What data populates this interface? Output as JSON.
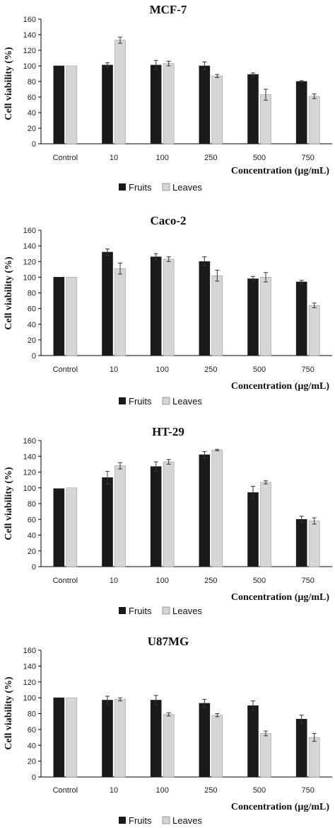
{
  "colors": {
    "fruits": "#1a1a1a",
    "leaves": "#d6d6d6",
    "axis": "#000000",
    "error": "#333333"
  },
  "chart_data": [
    {
      "type": "bar",
      "title": "MCF-7",
      "ylabel": "Cell viability (%)",
      "xlabel": "Concentration (µg/mL)",
      "categories": [
        "Control",
        "10",
        "100",
        "250",
        "500",
        "750"
      ],
      "ylim": [
        0,
        160
      ],
      "yticks": [
        0,
        20,
        40,
        60,
        80,
        100,
        120,
        140,
        160
      ],
      "grid": false,
      "legend": "bottom",
      "series": [
        {
          "name": "Fruits",
          "values": [
            100,
            101,
            101,
            100,
            89,
            80
          ],
          "errors": [
            0,
            3,
            6,
            5,
            2,
            1
          ]
        },
        {
          "name": "Leaves",
          "values": [
            100,
            133,
            103,
            87,
            63,
            61
          ],
          "errors": [
            0,
            4,
            3,
            2,
            7,
            3
          ]
        }
      ]
    },
    {
      "type": "bar",
      "title": "Caco-2",
      "ylabel": "Cell viability (%)",
      "xlabel": "Concentration (µg/mL)",
      "categories": [
        "Control",
        "10",
        "100",
        "250",
        "500",
        "750"
      ],
      "ylim": [
        0,
        160
      ],
      "yticks": [
        0,
        20,
        40,
        60,
        80,
        100,
        120,
        140,
        160
      ],
      "grid": false,
      "legend": "bottom",
      "series": [
        {
          "name": "Fruits",
          "values": [
            100,
            132,
            126,
            120,
            98,
            94
          ],
          "errors": [
            0,
            4,
            4,
            6,
            3,
            2
          ]
        },
        {
          "name": "Leaves",
          "values": [
            100,
            111,
            123,
            102,
            100,
            64
          ],
          "errors": [
            0,
            7,
            3,
            7,
            6,
            3
          ]
        }
      ]
    },
    {
      "type": "bar",
      "title": "HT-29",
      "ylabel": "Cell viability (%)",
      "xlabel": "Concentration (µg/mL)",
      "categories": [
        "Control",
        "10",
        "100",
        "250",
        "500",
        "750"
      ],
      "ylim": [
        0,
        160
      ],
      "yticks": [
        0,
        20,
        40,
        60,
        80,
        100,
        120,
        140,
        160
      ],
      "grid": false,
      "legend": "bottom",
      "series": [
        {
          "name": "Fruits",
          "values": [
            99,
            113,
            127,
            142,
            94,
            60
          ],
          "errors": [
            0,
            8,
            6,
            4,
            8,
            4
          ]
        },
        {
          "name": "Leaves",
          "values": [
            100,
            128,
            133,
            148,
            107,
            58
          ],
          "errors": [
            0,
            4,
            3,
            1,
            2,
            4
          ]
        }
      ]
    },
    {
      "type": "bar",
      "title": "U87MG",
      "ylabel": "Cell viability (%)",
      "xlabel": "Concentration (µg/mL)",
      "categories": [
        "Control",
        "10",
        "100",
        "250",
        "500",
        "750"
      ],
      "ylim": [
        0,
        160
      ],
      "yticks": [
        0,
        20,
        40,
        60,
        80,
        100,
        120,
        140,
        160
      ],
      "grid": false,
      "legend": "bottom",
      "series": [
        {
          "name": "Fruits",
          "values": [
            100,
            97,
            97,
            93,
            90,
            73
          ],
          "errors": [
            0,
            5,
            6,
            5,
            6,
            5
          ]
        },
        {
          "name": "Leaves",
          "values": [
            100,
            98,
            79,
            78,
            55,
            50
          ],
          "errors": [
            0,
            2,
            2,
            2,
            3,
            5
          ]
        }
      ]
    }
  ]
}
